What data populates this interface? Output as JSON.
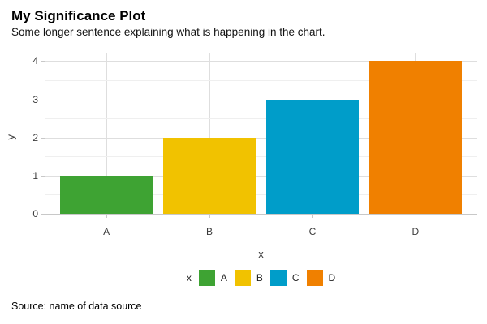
{
  "header": {
    "title": "My Significance Plot",
    "subtitle": "Some longer sentence explaining what is happening in the chart."
  },
  "chart_data": {
    "type": "bar",
    "title": "My Significance Plot",
    "subtitle": "Some longer sentence explaining what is happening in the chart.",
    "categories": [
      "A",
      "B",
      "C",
      "D"
    ],
    "values": [
      1,
      2,
      3,
      4
    ],
    "bar_colors": [
      "#3EA333",
      "#F1C200",
      "#009DC9",
      "#F08000"
    ],
    "xlabel": "x",
    "ylabel": "y",
    "ylim": [
      0,
      4
    ],
    "yticks": [
      0,
      1,
      2,
      3,
      4
    ],
    "grid": "horizontal major+minor, vertical major at categories",
    "legend": {
      "title": "x",
      "position": "bottom",
      "entries": [
        {
          "label": "A",
          "color": "#3EA333"
        },
        {
          "label": "B",
          "color": "#F1C200"
        },
        {
          "label": "C",
          "color": "#009DC9"
        },
        {
          "label": "D",
          "color": "#F08000"
        }
      ]
    }
  },
  "footer": {
    "source": "Source: name of data source"
  }
}
